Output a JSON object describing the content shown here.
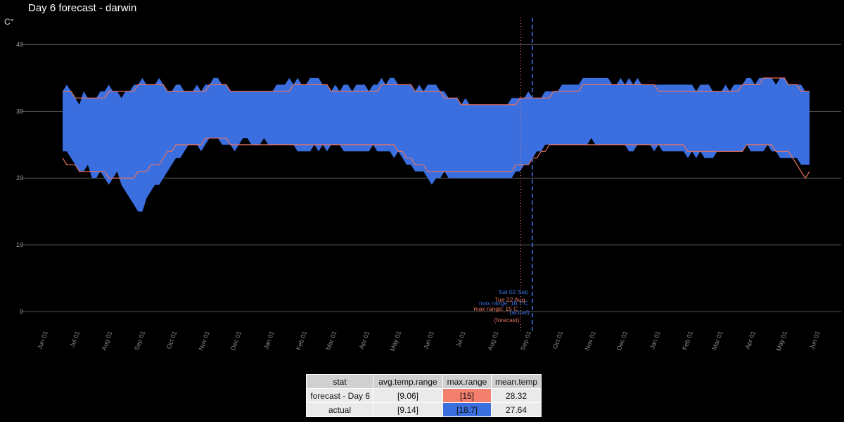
{
  "title": "Day 6 forecast - darwin",
  "y_unit": "C°",
  "colors": {
    "actual": "#3b6fe0",
    "forecast": "#e8735f",
    "grid": "#555555",
    "background": "#000000"
  },
  "chart_data": {
    "type": "area",
    "title": "Day 6 forecast - darwin",
    "ylabel": "C°",
    "ylim": [
      -2,
      43
    ],
    "yticks": [
      0,
      10,
      20,
      30,
      40
    ],
    "x_start": "2017-06-01",
    "x_end": "2019-06-01",
    "data_start": "2017-06-15",
    "data_end": "2019-05-22",
    "xtick_labels": [
      "Jun 01",
      "Jul 01",
      "Aug 01",
      "Sep 01",
      "Oct 01",
      "Nov 01",
      "Dec 01",
      "Jan 01",
      "Feb 01",
      "Mar 01",
      "Apr 01",
      "May 01",
      "Jun 01",
      "Jul 01",
      "Aug 01",
      "Sep 01",
      "Oct 01",
      "Nov 01",
      "Dec 01",
      "Jan 01",
      "Feb 01",
      "Mar 01",
      "Apr 01",
      "May 01",
      "Jun 01"
    ],
    "xtick_dates": [
      "2017-06-01",
      "2017-07-01",
      "2017-08-01",
      "2017-09-01",
      "2017-10-01",
      "2017-11-01",
      "2017-12-01",
      "2018-01-01",
      "2018-02-01",
      "2018-03-01",
      "2018-04-01",
      "2018-05-01",
      "2018-06-01",
      "2018-07-01",
      "2018-08-01",
      "2018-09-01",
      "2018-10-01",
      "2018-11-01",
      "2018-12-01",
      "2019-01-01",
      "2019-02-01",
      "2019-03-01",
      "2019-04-01",
      "2019-05-01",
      "2019-06-01"
    ],
    "series": [
      {
        "name": "actual",
        "kind": "range band",
        "max": [
          33,
          34,
          33,
          32,
          31,
          33,
          32,
          32,
          32,
          33,
          33,
          34,
          33,
          33,
          32,
          33,
          33,
          34,
          34,
          35,
          34,
          34,
          34,
          35,
          34,
          33,
          33,
          34,
          34,
          33,
          33,
          33,
          34,
          33,
          34,
          34,
          35,
          35,
          34,
          34,
          33,
          33,
          33,
          33,
          33,
          33,
          33,
          33,
          33,
          33,
          33,
          34,
          34,
          34,
          35,
          34,
          35,
          34,
          34,
          35,
          35,
          35,
          34,
          34,
          33,
          34,
          33,
          34,
          34,
          33,
          34,
          34,
          34,
          33,
          34,
          34,
          35,
          34,
          35,
          35,
          34,
          34,
          34,
          34,
          33,
          34,
          33,
          34,
          34,
          34,
          33,
          33,
          32,
          32,
          32,
          31,
          32,
          31,
          31,
          31,
          31,
          31,
          31,
          31,
          31,
          31,
          31,
          32,
          32,
          32,
          32,
          33,
          32,
          32,
          32,
          33,
          33,
          33,
          33,
          34,
          34,
          34,
          34,
          34,
          35,
          35,
          35,
          35,
          35,
          35,
          35,
          34,
          34,
          35,
          34,
          35,
          34,
          35,
          34,
          34,
          34,
          34,
          34,
          34,
          34,
          34,
          34,
          34,
          34,
          34,
          34,
          33,
          34,
          34,
          34,
          33,
          33,
          33,
          34,
          33,
          34,
          34,
          34,
          35,
          35,
          34,
          35,
          35,
          35,
          35,
          34,
          35,
          35,
          34,
          34,
          34,
          34,
          33,
          33
        ],
        "min": [
          24,
          24,
          23,
          22,
          21,
          21,
          22,
          20,
          20,
          21,
          20,
          19,
          20,
          21,
          19,
          18,
          17,
          16,
          15,
          15,
          17,
          18,
          19,
          19,
          20,
          21,
          22,
          23,
          23,
          24,
          25,
          25,
          25,
          24,
          25,
          26,
          26,
          26,
          25,
          25,
          25,
          24,
          25,
          26,
          26,
          25,
          25,
          25,
          26,
          25,
          25,
          25,
          25,
          25,
          25,
          25,
          24,
          24,
          24,
          24,
          25,
          24,
          25,
          24,
          25,
          25,
          25,
          24,
          24,
          24,
          24,
          24,
          24,
          24,
          25,
          24,
          24,
          24,
          24,
          23,
          24,
          23,
          22,
          22,
          21,
          21,
          21,
          20,
          19,
          20,
          20,
          21,
          20,
          20,
          20,
          20,
          20,
          20,
          20,
          20,
          20,
          20,
          20,
          20,
          20,
          20,
          20,
          20,
          21,
          21,
          22,
          22,
          23,
          24,
          24,
          25,
          25,
          25,
          25,
          25,
          25,
          25,
          25,
          25,
          25,
          25,
          26,
          25,
          25,
          25,
          25,
          25,
          25,
          25,
          25,
          24,
          24,
          25,
          25,
          25,
          25,
          24,
          25,
          24,
          24,
          24,
          24,
          24,
          24,
          23,
          24,
          23,
          24,
          23,
          23,
          23,
          24,
          24,
          24,
          24,
          24,
          24,
          24,
          25,
          24,
          24,
          24,
          24,
          25,
          24,
          24,
          23,
          23,
          23,
          23,
          23,
          22,
          22,
          22
        ]
      },
      {
        "name": "forecast",
        "kind": "max/min lines",
        "max": [
          33,
          33,
          33,
          32,
          32,
          32,
          32,
          32,
          32,
          32,
          32,
          33,
          33,
          33,
          33,
          33,
          33,
          33,
          34,
          34,
          34,
          34,
          34,
          34,
          34,
          33,
          33,
          33,
          33,
          33,
          33,
          33,
          33,
          33,
          33,
          34,
          34,
          34,
          34,
          34,
          33,
          33,
          33,
          33,
          33,
          33,
          33,
          33,
          33,
          33,
          33,
          33,
          33,
          33,
          33,
          34,
          34,
          34,
          34,
          34,
          34,
          34,
          34,
          34,
          33,
          33,
          33,
          33,
          33,
          33,
          33,
          33,
          33,
          33,
          33,
          33,
          34,
          34,
          34,
          34,
          34,
          34,
          34,
          34,
          33,
          33,
          33,
          33,
          33,
          33,
          33,
          32,
          32,
          32,
          32,
          31,
          31,
          31,
          31,
          31,
          31,
          31,
          31,
          31,
          31,
          31,
          31,
          31,
          31,
          32,
          32,
          32,
          32,
          32,
          32,
          32,
          32,
          33,
          33,
          33,
          33,
          33,
          33,
          33,
          34,
          34,
          34,
          34,
          34,
          34,
          34,
          34,
          34,
          34,
          34,
          34,
          34,
          34,
          34,
          34,
          34,
          34,
          33,
          33,
          33,
          33,
          33,
          33,
          33,
          33,
          33,
          33,
          33,
          33,
          33,
          33,
          33,
          33,
          33,
          33,
          33,
          33,
          34,
          34,
          34,
          34,
          34,
          35,
          35,
          35,
          35,
          35,
          35,
          34,
          34,
          34,
          33,
          33,
          33
        ],
        "min": [
          23,
          22,
          22,
          22,
          21,
          21,
          21,
          21,
          21,
          21,
          21,
          20,
          20,
          20,
          20,
          20,
          20,
          20,
          21,
          21,
          21,
          22,
          22,
          22,
          23,
          24,
          24,
          25,
          25,
          25,
          25,
          25,
          25,
          25,
          26,
          26,
          26,
          26,
          26,
          26,
          25,
          25,
          25,
          25,
          25,
          25,
          25,
          25,
          25,
          25,
          25,
          25,
          25,
          25,
          25,
          25,
          25,
          25,
          25,
          25,
          25,
          25,
          25,
          25,
          25,
          25,
          25,
          25,
          25,
          25,
          25,
          25,
          25,
          25,
          25,
          25,
          25,
          25,
          25,
          25,
          24,
          24,
          23,
          23,
          22,
          22,
          22,
          21,
          21,
          21,
          21,
          21,
          21,
          21,
          21,
          21,
          21,
          21,
          21,
          21,
          21,
          21,
          21,
          21,
          21,
          21,
          21,
          21,
          22,
          22,
          22,
          22,
          23,
          23,
          24,
          24,
          25,
          25,
          25,
          25,
          25,
          25,
          25,
          25,
          25,
          25,
          25,
          25,
          25,
          25,
          25,
          25,
          25,
          25,
          25,
          25,
          25,
          25,
          25,
          25,
          25,
          25,
          25,
          25,
          25,
          25,
          25,
          25,
          25,
          24,
          24,
          24,
          24,
          24,
          24,
          24,
          24,
          24,
          24,
          24,
          24,
          24,
          24,
          25,
          25,
          25,
          25,
          25,
          25,
          25,
          24,
          24,
          24,
          24,
          23,
          22,
          21,
          20,
          21
        ]
      }
    ],
    "annotations": [
      {
        "series": "actual",
        "date_label": "Sat 02 Sep",
        "date": "2018-09-02",
        "text": "max range: 18.7 C",
        "suffix": "(actual)",
        "line": "dashed"
      },
      {
        "series": "forecast",
        "date_label": "Tue 22 Aug",
        "date": "2018-08-22",
        "text": "max range: 15 C",
        "suffix": "(forecast)",
        "line": "dotted"
      }
    ],
    "grid": true,
    "legend": "none"
  },
  "table": {
    "headers": [
      "stat",
      "avg.temp.range",
      "max.range",
      "mean.temp"
    ],
    "rows": [
      [
        "forecast - Day 6",
        "[9.06]",
        "[15]",
        "28.32"
      ],
      [
        "actual",
        "[9.14]",
        "[18.7]",
        "27.64"
      ]
    ]
  }
}
